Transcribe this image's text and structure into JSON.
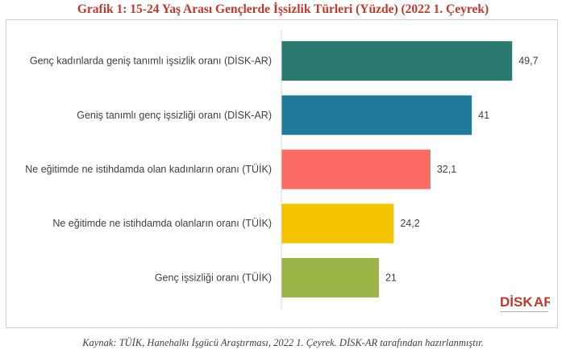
{
  "title": "Grafik 1:  15-24 Yaş Arası Gençlerde İşsizlik Türleri (Yüzde) (2022 1. Çeyrek)",
  "source": "Kaynak: TÜİK, Hanehalkı İşgücü Araştırması, 2022 1. Çeyrek. DİSK-AR tarafından hazırlanmıştır.",
  "logo": {
    "text_dis": "DİSK",
    "text_ar": "AR"
  },
  "colors": {
    "title": "#c0392b",
    "axis": "#d9d9d9",
    "logo_red": "#c0392b",
    "logo_dark": "#333333"
  },
  "chart_data": {
    "type": "bar",
    "orientation": "horizontal",
    "categories": [
      "Genç kadınlarda geniş tanımlı işsizlik oranı (DİSK-AR)",
      "Geniş tanımlı genç işsizliği oranı (DİSK-AR)",
      "Ne eğitimde ne istihdamda olan kadınların oranı (TÜİK)",
      "Ne eğitimde ne istihdamda olanların oranı (TÜİK)",
      "Genç işsizliği oranı (TÜİK)"
    ],
    "values": [
      49.7,
      41,
      32.1,
      24.2,
      21
    ],
    "value_labels": [
      "49,7",
      "41",
      "32,1",
      "24,2",
      "21"
    ],
    "bar_colors": [
      "#2a7a72",
      "#1f7a9b",
      "#fb6a63",
      "#f5c400",
      "#9bb446"
    ],
    "xlim": [
      0,
      54
    ],
    "grid": false,
    "legend": "none"
  }
}
